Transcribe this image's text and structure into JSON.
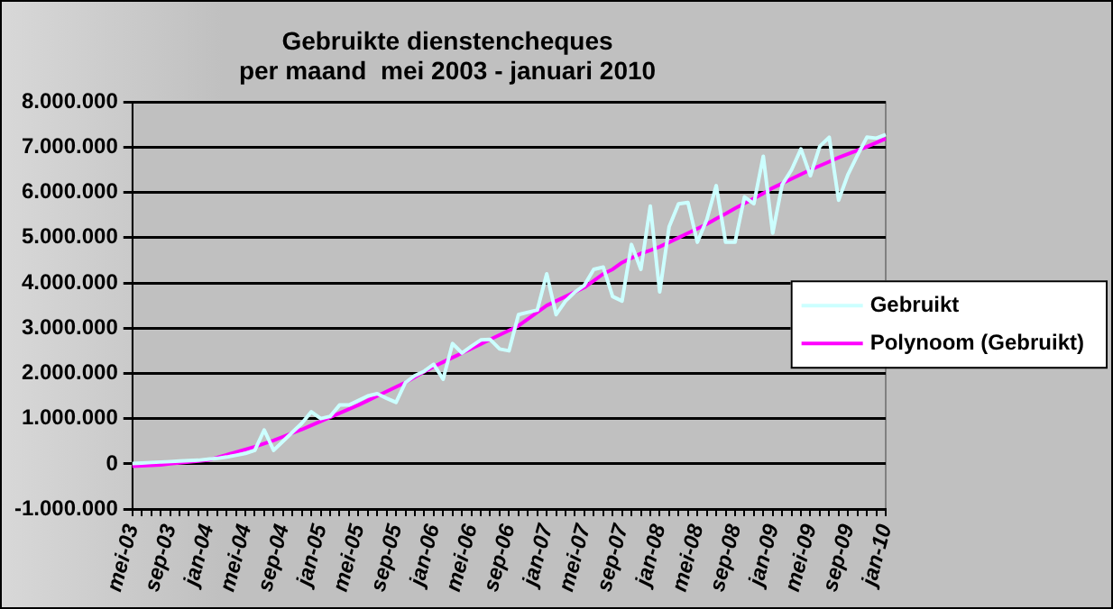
{
  "chart_data": {
    "type": "line",
    "title": "Gebruikte dienstencheques\nper maand  mei 2003 - januari 2010",
    "categories": [
      "mei-03",
      null,
      null,
      null,
      "sep-03",
      null,
      null,
      null,
      "jan-04",
      null,
      null,
      null,
      "mei-04",
      null,
      null,
      null,
      "sep-04",
      null,
      null,
      null,
      "jan-05",
      null,
      null,
      null,
      "mei-05",
      null,
      null,
      null,
      "sep-05",
      null,
      null,
      null,
      "jan-06",
      null,
      null,
      null,
      "mei-06",
      null,
      null,
      null,
      "sep-06",
      null,
      null,
      null,
      "jan-07",
      null,
      null,
      null,
      "mei-07",
      null,
      null,
      null,
      "sep-07",
      null,
      null,
      null,
      "jan-08",
      null,
      null,
      null,
      "mei-08",
      null,
      null,
      null,
      "sep-08",
      null,
      null,
      null,
      "jan-09",
      null,
      null,
      null,
      "mei-09",
      null,
      null,
      null,
      "sep-09",
      null,
      null,
      null,
      "jan-10"
    ],
    "series": [
      {
        "name": "Gebruikt",
        "color": "#ccffff",
        "values": [
          10000,
          20000,
          30000,
          40000,
          50000,
          60000,
          70000,
          80000,
          100000,
          120000,
          150000,
          190000,
          230000,
          300000,
          750000,
          300000,
          500000,
          700000,
          900000,
          1150000,
          1000000,
          1050000,
          1300000,
          1300000,
          1400000,
          1500000,
          1550000,
          1450000,
          1360000,
          1800000,
          1950000,
          2050000,
          2200000,
          1870000,
          2660000,
          2450000,
          2600000,
          2740000,
          2750000,
          2540000,
          2500000,
          3300000,
          3350000,
          3400000,
          4200000,
          3300000,
          3600000,
          3800000,
          3950000,
          4300000,
          4350000,
          3700000,
          3600000,
          4850000,
          4300000,
          5700000,
          3800000,
          5240000,
          5750000,
          5780000,
          4900000,
          5400000,
          6150000,
          4900000,
          4900000,
          5900000,
          5750000,
          6800000,
          5100000,
          6170000,
          6500000,
          6960000,
          6370000,
          7020000,
          7220000,
          5830000,
          6400000,
          6820000,
          7220000,
          7200000,
          7280000
        ]
      },
      {
        "name": "Polynoom (Gebruikt)",
        "color": "#ff00ff",
        "values": [
          -50000,
          -40000,
          -30000,
          -20000,
          0,
          20000,
          40000,
          60000,
          80000,
          140000,
          200000,
          260000,
          320000,
          380000,
          450000,
          520000,
          600000,
          680000,
          760000,
          850000,
          940000,
          1030000,
          1120000,
          1210000,
          1300000,
          1400000,
          1500000,
          1600000,
          1700000,
          1800000,
          1920000,
          2040000,
          2150000,
          2250000,
          2350000,
          2450000,
          2550000,
          2650000,
          2750000,
          2850000,
          2950000,
          3050000,
          3200000,
          3350000,
          3500000,
          3600000,
          3700000,
          3800000,
          3900000,
          4050000,
          4200000,
          4300000,
          4450000,
          4550000,
          4650000,
          4720000,
          4800000,
          4900000,
          5000000,
          5100000,
          5200000,
          5300000,
          5420000,
          5530000,
          5650000,
          5760000,
          5870000,
          5980000,
          6100000,
          6200000,
          6300000,
          6400000,
          6500000,
          6590000,
          6680000,
          6770000,
          6850000,
          6930000,
          7010000,
          7100000,
          7190000
        ]
      }
    ],
    "ylim": [
      -1000000,
      8000000
    ],
    "yticks": [
      {
        "value": -1000000,
        "label": "-1.000.000"
      },
      {
        "value": 0,
        "label": "0"
      },
      {
        "value": 1000000,
        "label": "1.000.000"
      },
      {
        "value": 2000000,
        "label": "2.000.000"
      },
      {
        "value": 3000000,
        "label": "3.000.000"
      },
      {
        "value": 4000000,
        "label": "4.000.000"
      },
      {
        "value": 5000000,
        "label": "5.000.000"
      },
      {
        "value": 6000000,
        "label": "6.000.000"
      },
      {
        "value": 7000000,
        "label": "7.000.000"
      },
      {
        "value": 8000000,
        "label": "8.000.000"
      }
    ],
    "grid": "y",
    "legend": "right",
    "marker": "none",
    "line_style": "solid"
  }
}
